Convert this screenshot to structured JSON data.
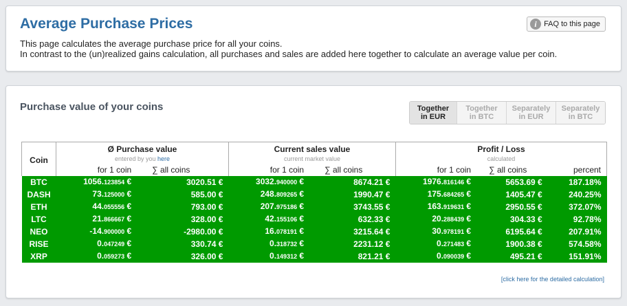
{
  "header": {
    "title": "Average Purchase Prices",
    "faq_label": "FAQ to this page",
    "info_icon": "info-icon",
    "desc_line1": "This page calculates the average purchase price for all your coins.",
    "desc_line2": "In contrast to the (un)realized gains calculation, all purchases and sales are added here together to calculate an average value per coin."
  },
  "section": {
    "title": "Purchase value of your coins",
    "toggles": [
      {
        "line1": "Together",
        "line2": "in EUR",
        "active": true
      },
      {
        "line1": "Together",
        "line2": "in BTC",
        "active": false
      },
      {
        "line1": "Separately",
        "line2": "in EUR",
        "active": false
      },
      {
        "line1": "Separately",
        "line2": "in BTC",
        "active": false
      }
    ]
  },
  "table": {
    "coin_header": "Coin",
    "groups": [
      {
        "title": "Ø Purchase value",
        "sub_prefix": "entered by you ",
        "sub_link": "here"
      },
      {
        "title": "Current sales value",
        "sub_prefix": "current market value",
        "sub_link": ""
      },
      {
        "title": "Profit / Loss",
        "sub_prefix": "calculated",
        "sub_link": ""
      }
    ],
    "col_labels": [
      "for 1 coin",
      "∑ all coins",
      "for 1 coin",
      "∑ all coins",
      "for 1 coin",
      "∑ all coins",
      "percent"
    ],
    "rows": [
      {
        "coin": "BTC",
        "pv1_main": "1056.",
        "pv1_small": "123854",
        "pv_all": "3020.51 €",
        "cv1_main": "3032.",
        "cv1_small": "940000",
        "cv_all": "8674.21 €",
        "pl1_main": "1976.",
        "pl1_small": "816146",
        "pl_all": "5653.69 €",
        "pct": "187.18%"
      },
      {
        "coin": "DASH",
        "pv1_main": "73.",
        "pv1_small": "125000",
        "pv_all": "585.00 €",
        "cv1_main": "248.",
        "cv1_small": "809265",
        "cv_all": "1990.47 €",
        "pl1_main": "175.",
        "pl1_small": "684265",
        "pl_all": "1405.47 €",
        "pct": "240.25%"
      },
      {
        "coin": "ETH",
        "pv1_main": "44.",
        "pv1_small": "055556",
        "pv_all": "793.00 €",
        "cv1_main": "207.",
        "cv1_small": "975186",
        "cv_all": "3743.55 €",
        "pl1_main": "163.",
        "pl1_small": "919631",
        "pl_all": "2950.55 €",
        "pct": "372.07%"
      },
      {
        "coin": "LTC",
        "pv1_main": "21.",
        "pv1_small": "866667",
        "pv_all": "328.00 €",
        "cv1_main": "42.",
        "cv1_small": "155106",
        "cv_all": "632.33 €",
        "pl1_main": "20.",
        "pl1_small": "288439",
        "pl_all": "304.33 €",
        "pct": "92.78%"
      },
      {
        "coin": "NEO",
        "pv1_main": "-14.",
        "pv1_small": "900000",
        "pv_all": "-2980.00 €",
        "cv1_main": "16.",
        "cv1_small": "078191",
        "cv_all": "3215.64 €",
        "pl1_main": "30.",
        "pl1_small": "978191",
        "pl_all": "6195.64 €",
        "pct": "207.91%"
      },
      {
        "coin": "RISE",
        "pv1_main": "0.",
        "pv1_small": "047249",
        "pv_all": "330.74 €",
        "cv1_main": "0.",
        "cv1_small": "318732",
        "cv_all": "2231.12 €",
        "pl1_main": "0.",
        "pl1_small": "271483",
        "pl_all": "1900.38 €",
        "pct": "574.58%"
      },
      {
        "coin": "XRP",
        "pv1_main": "0.",
        "pv1_small": "059273",
        "pv_all": "326.00 €",
        "cv1_main": "0.",
        "cv1_small": "149312",
        "cv_all": "821.21 €",
        "pl1_main": "0.",
        "pl1_small": "090039",
        "pl_all": "495.21 €",
        "pct": "151.91%"
      }
    ],
    "row_color": "#009a00",
    "detail_link": "[click here for the detailed calculation]"
  }
}
